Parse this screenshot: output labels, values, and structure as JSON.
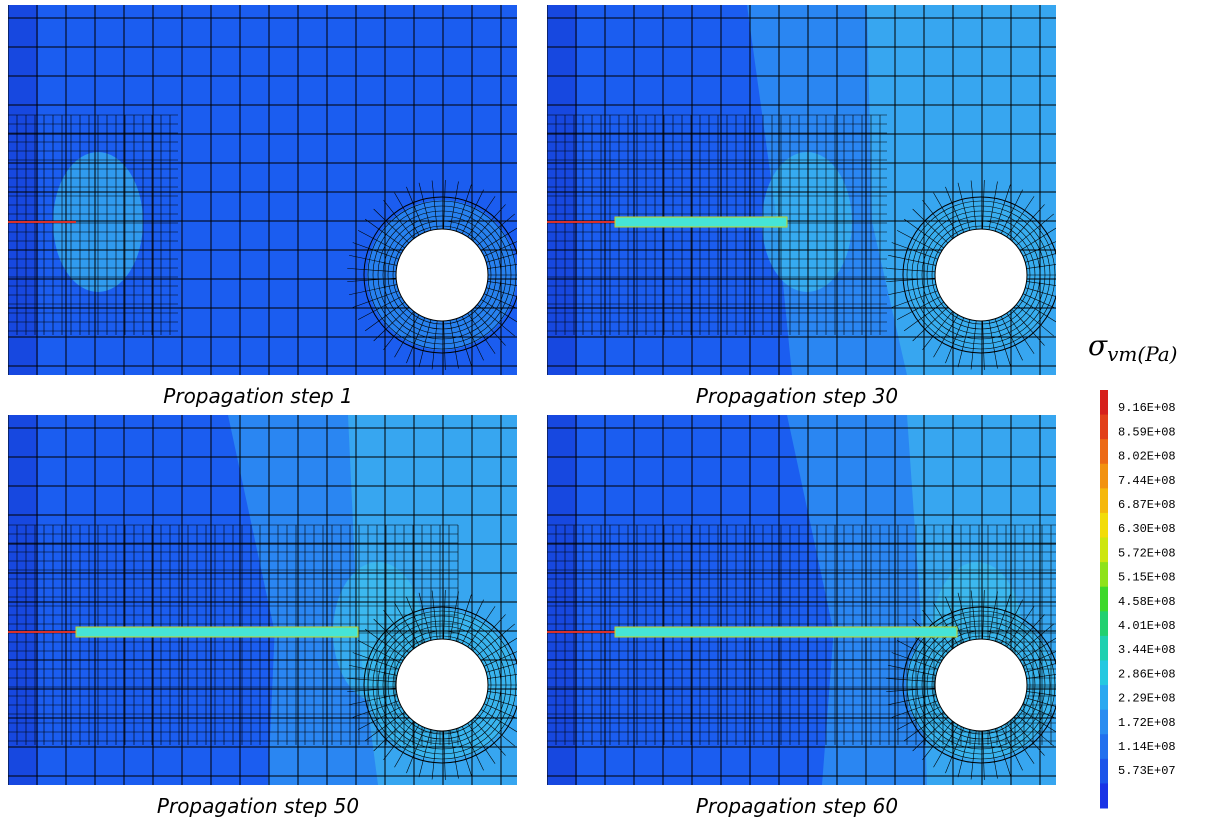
{
  "panels": [
    {
      "caption": "Propagation step 1"
    },
    {
      "caption": "Propagation step 30"
    },
    {
      "caption": "Propagation step 50"
    },
    {
      "caption": "Propagation step 60"
    }
  ],
  "colorbar": {
    "label": {
      "symbol": "σ",
      "subscript": "vm(Pa)"
    },
    "ticks": [
      "9.16E+08",
      "8.59E+08",
      "8.02E+08",
      "7.44E+08",
      "6.87E+08",
      "6.30E+08",
      "5.72E+08",
      "5.15E+08",
      "4.58E+08",
      "4.01E+08",
      "3.44E+08",
      "2.86E+08",
      "2.29E+08",
      "1.72E+08",
      "1.14E+08",
      "5.73E+07"
    ]
  }
}
